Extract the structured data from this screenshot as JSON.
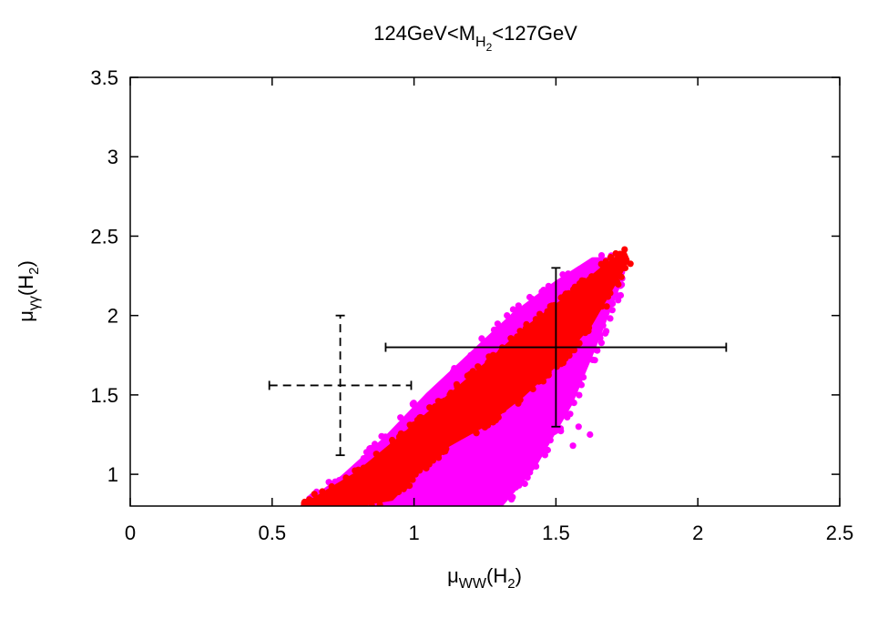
{
  "chart_data": {
    "type": "scatter",
    "title": {
      "prefix": "124GeV<M",
      "sub": "H",
      "subsub": "2",
      "suffix": "<127GeV"
    },
    "xlabel": {
      "main": "μ",
      "sub": "WW",
      "suffix_open": "(H",
      "suffix_sub": "2",
      "suffix_close": ")"
    },
    "ylabel": {
      "main": "μ",
      "sub": "γγ",
      "suffix_open": "(H",
      "suffix_sub": "2",
      "suffix_close": ")"
    },
    "xlim": [
      0,
      2.5
    ],
    "ylim": [
      0.8,
      3.5
    ],
    "xticks": [
      "0",
      "0.5",
      "1",
      "1.5",
      "2",
      "2.5"
    ],
    "xtick_values": [
      0,
      0.5,
      1,
      1.5,
      2,
      2.5
    ],
    "yticks": [
      "1",
      "1.5",
      "2",
      "2.5",
      "3",
      "3.5"
    ],
    "ytick_values": [
      1,
      1.5,
      2,
      2.5,
      3,
      3.5
    ],
    "grid": false,
    "colors": {
      "magenta": "#ff00ff",
      "red": "#ff0000",
      "errorbar": "#000000"
    },
    "series": [
      {
        "color": "magenta",
        "region": [
          [
            0.61,
            0.8
          ],
          [
            1.05,
            0.8
          ],
          [
            1.3,
            0.8
          ],
          [
            1.42,
            1.05
          ],
          [
            1.55,
            1.45
          ],
          [
            1.62,
            1.75
          ],
          [
            1.72,
            2.2
          ],
          [
            1.7,
            2.35
          ],
          [
            1.63,
            2.35
          ],
          [
            1.5,
            2.2
          ],
          [
            1.35,
            2.0
          ],
          [
            1.2,
            1.75
          ],
          [
            1.05,
            1.5
          ],
          [
            0.9,
            1.22
          ],
          [
            0.75,
            0.98
          ],
          [
            0.63,
            0.82
          ]
        ],
        "outliers": [
          [
            1.2,
            1.75
          ],
          [
            1.22,
            1.65
          ],
          [
            1.25,
            1.55
          ],
          [
            1.12,
            1.48
          ],
          [
            1.18,
            1.52
          ],
          [
            1.47,
            1.25
          ],
          [
            1.45,
            1.18
          ],
          [
            1.43,
            1.05
          ],
          [
            1.4,
            0.98
          ],
          [
            1.37,
            0.93
          ],
          [
            1.3,
            0.88
          ],
          [
            1.38,
            1.15
          ],
          [
            1.35,
            0.95
          ],
          [
            1.53,
            1.5
          ],
          [
            1.55,
            1.38
          ],
          [
            1.58,
            1.3
          ],
          [
            1.62,
            1.25
          ],
          [
            1.56,
            1.18
          ],
          [
            1.28,
            0.85
          ],
          [
            1.32,
            0.97
          ],
          [
            1.25,
            0.92
          ]
        ]
      },
      {
        "color": "red",
        "region": [
          [
            0.61,
            0.8
          ],
          [
            0.75,
            0.8
          ],
          [
            0.92,
            0.85
          ],
          [
            1.0,
            1.0
          ],
          [
            1.1,
            1.17
          ],
          [
            1.25,
            1.32
          ],
          [
            1.38,
            1.5
          ],
          [
            1.5,
            1.7
          ],
          [
            1.62,
            1.95
          ],
          [
            1.75,
            2.35
          ],
          [
            1.74,
            2.39
          ],
          [
            1.67,
            2.3
          ],
          [
            1.55,
            2.12
          ],
          [
            1.4,
            1.92
          ],
          [
            1.25,
            1.68
          ],
          [
            1.1,
            1.45
          ],
          [
            0.95,
            1.22
          ],
          [
            0.8,
            1.0
          ],
          [
            0.66,
            0.85
          ]
        ]
      }
    ],
    "error_bars": [
      {
        "style": "solid",
        "x": 1.5,
        "y": 1.8,
        "xerr": [
          0.9,
          2.1
        ],
        "yerr": [
          1.3,
          2.3
        ]
      },
      {
        "style": "dashed",
        "x": 0.74,
        "y": 1.56,
        "xerr": [
          0.49,
          0.99
        ],
        "yerr": [
          1.12,
          2.0
        ]
      }
    ]
  }
}
